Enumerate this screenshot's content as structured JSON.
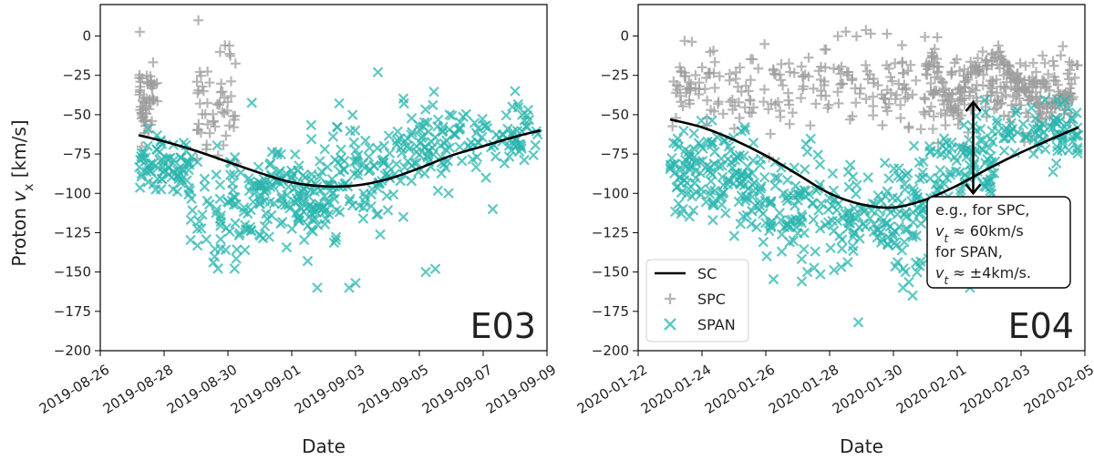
{
  "figure": {
    "ylabel_prefix": "Proton ",
    "ylabel_var": "v",
    "ylabel_sub": "x",
    "ylabel_suffix": " [km/s]"
  },
  "colors": {
    "sc": "#000000",
    "spc": "#9e9e9e",
    "span": "#2ab5ad"
  },
  "legend": {
    "sc": "SC",
    "spc": "SPC",
    "span": "SPAN"
  },
  "annotation": {
    "line1": "e.g., for SPC,",
    "line2_var": "v",
    "line2_sub": "t",
    "line2_rest": " ≈ 60km/s",
    "line3": "for SPAN,",
    "line4_var": "v",
    "line4_sub": "t",
    "line4_rest": " ≈ ±4km/s.",
    "arrow_from": -42,
    "arrow_to": -100,
    "arrow_day": 10.5
  },
  "chart_data": [
    {
      "type": "scatter",
      "label": "E03",
      "xlabel": "Date",
      "ylabel": "Proton v_x [km/s]",
      "xticks": [
        "2019-08-26",
        "2019-08-28",
        "2019-08-30",
        "2019-09-01",
        "2019-09-03",
        "2019-09-05",
        "2019-09-07",
        "2019-09-09"
      ],
      "xlim_days": [
        0,
        14
      ],
      "ylim": [
        -200,
        20
      ],
      "yticks": [
        0,
        -25,
        -50,
        -75,
        -100,
        -125,
        -150,
        -175,
        -200
      ],
      "sc_curve": {
        "x_days": [
          1.2,
          2,
          3,
          4,
          5,
          6,
          7,
          8,
          9,
          10,
          11,
          12,
          13,
          13.8
        ],
        "y": [
          -63,
          -67,
          -73,
          -80,
          -87,
          -93,
          -95.5,
          -95,
          -91,
          -84,
          -76,
          -70,
          -64,
          -60
        ]
      },
      "spc": {
        "n": 110,
        "seed": 11,
        "clusters": [
          [
            1.2,
            1.8,
            -40,
            12
          ],
          [
            3.0,
            4.3,
            -45,
            18
          ]
        ]
      },
      "span": {
        "n": 520,
        "seed": 7,
        "clusters": [
          [
            1.2,
            2.8,
            -83,
            9
          ],
          [
            2.8,
            4.8,
            -110,
            18
          ],
          [
            4.8,
            6.2,
            -100,
            13
          ],
          [
            6.2,
            7.4,
            -103,
            15
          ],
          [
            7.4,
            9.2,
            -88,
            16
          ],
          [
            9.2,
            11.0,
            -70,
            12
          ],
          [
            11.0,
            13.8,
            -63,
            9
          ]
        ],
        "outliers": [
          [
            8.7,
            -23
          ],
          [
            7.8,
            -160
          ],
          [
            10.2,
            -150
          ],
          [
            10.5,
            -148
          ],
          [
            6.5,
            -143
          ],
          [
            6.8,
            -160
          ],
          [
            13.0,
            -35
          ],
          [
            12.3,
            -110
          ],
          [
            9.5,
            -115
          ],
          [
            8.0,
            -157
          ]
        ]
      }
    },
    {
      "type": "scatter",
      "label": "E04",
      "xlabel": "Date",
      "ylabel": "Proton v_x [km/s]",
      "xticks": [
        "2020-01-22",
        "2020-01-24",
        "2020-01-26",
        "2020-01-28",
        "2020-01-30",
        "2020-02-01",
        "2020-02-03",
        "2020-02-05"
      ],
      "xlim_days": [
        0,
        14
      ],
      "ylim": [
        -200,
        20
      ],
      "yticks": [
        0,
        -25,
        -50,
        -75,
        -100,
        -125,
        -150,
        -175,
        -200
      ],
      "sc_curve": {
        "x_days": [
          1.0,
          2,
          3,
          4,
          5,
          6,
          7,
          8,
          9,
          10,
          11,
          12,
          13,
          13.8
        ],
        "y": [
          -53,
          -58,
          -66,
          -76,
          -88,
          -100,
          -107,
          -109,
          -104,
          -95,
          -84,
          -74,
          -65,
          -58
        ]
      },
      "spc": {
        "n": 420,
        "seed": 23,
        "clusters": [
          [
            1.0,
            9.0,
            -30,
            13
          ],
          [
            9.0,
            13.8,
            -35,
            12
          ]
        ],
        "zigzag": [
          [
            9.0,
            -22
          ],
          [
            9.3,
            -12
          ],
          [
            9.7,
            -40
          ],
          [
            10.0,
            -48
          ],
          [
            10.4,
            -20
          ],
          [
            10.8,
            -22
          ],
          [
            11.2,
            -12
          ],
          [
            11.6,
            -22
          ],
          [
            12.0,
            -30
          ],
          [
            12.4,
            -42
          ],
          [
            12.8,
            -48
          ],
          [
            13.2,
            -40
          ],
          [
            13.6,
            -38
          ]
        ]
      },
      "span": {
        "n": 560,
        "seed": 5,
        "clusters": [
          [
            1.0,
            2.5,
            -85,
            14
          ],
          [
            2.5,
            4.0,
            -92,
            16
          ],
          [
            4.0,
            6.0,
            -108,
            18
          ],
          [
            6.0,
            8.0,
            -115,
            17
          ],
          [
            8.0,
            9.4,
            -110,
            20
          ],
          [
            9.4,
            11.2,
            -80,
            13
          ],
          [
            11.2,
            13.8,
            -62,
            9
          ]
        ],
        "outliers": [
          [
            6.9,
            -182
          ],
          [
            8.3,
            -160
          ],
          [
            8.6,
            -165
          ],
          [
            5.3,
            -150
          ],
          [
            4.5,
            -137
          ],
          [
            10.4,
            -160
          ],
          [
            1.4,
            -110
          ]
        ]
      }
    }
  ]
}
